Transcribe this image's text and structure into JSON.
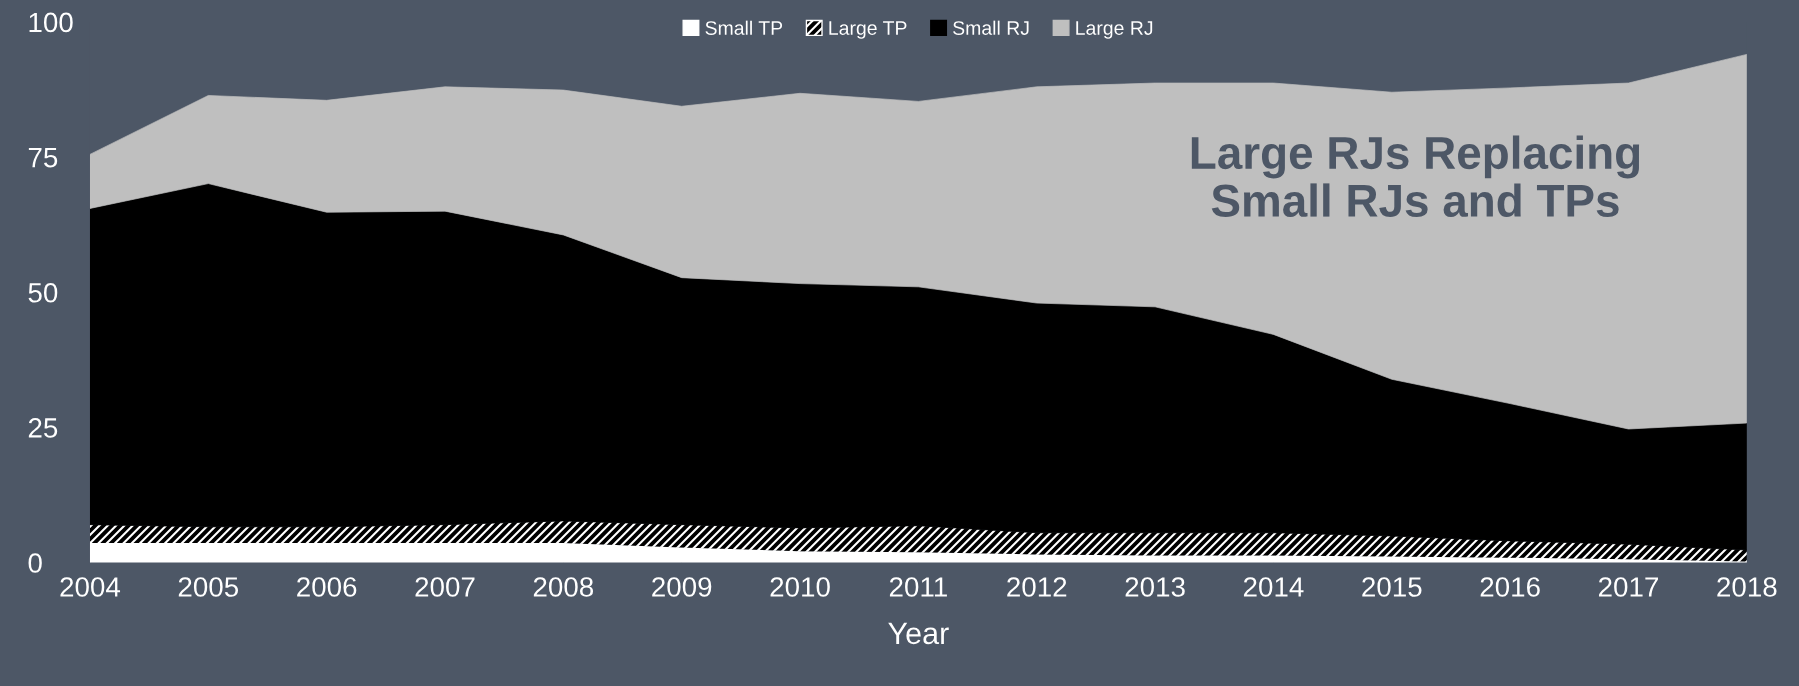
{
  "chart_data": {
    "type": "area",
    "stacked": true,
    "xlabel": "Year",
    "x": [
      2004,
      2005,
      2006,
      2007,
      2008,
      2009,
      2010,
      2011,
      2012,
      2013,
      2014,
      2015,
      2016,
      2017,
      2018
    ],
    "series": [
      {
        "name": "Small TP",
        "color": "#ffffff",
        "values": [
          3.6,
          3.6,
          3.6,
          3.6,
          3.6,
          2.8,
          2.1,
          1.9,
          1.5,
          1.3,
          1.3,
          1.1,
          0.9,
          0.6,
          0.2
        ]
      },
      {
        "name": "Large TP",
        "color": "#000000",
        "values": [
          3.4,
          3.0,
          3.0,
          3.4,
          4.1,
          4.2,
          4.3,
          4.9,
          4.0,
          4.2,
          4.2,
          3.8,
          3.1,
          2.8,
          2.1
        ]
      },
      {
        "name": "Small RJ",
        "color": "#000000",
        "values": [
          58.5,
          63.5,
          58.2,
          58.0,
          52.9,
          45.7,
          45.2,
          44.2,
          42.5,
          41.8,
          36.7,
          29.0,
          25.4,
          21.3,
          23.5
        ]
      },
      {
        "name": "Large RJ",
        "color": "#bfbfbf",
        "values": [
          10.0,
          16.3,
          20.7,
          23.0,
          26.8,
          31.7,
          35.2,
          34.3,
          40.0,
          41.4,
          46.5,
          53.1,
          58.4,
          64.0,
          68.2
        ]
      }
    ],
    "xlim": [
      2004,
      2018
    ],
    "xticks": [
      2004,
      2005,
      2006,
      2007,
      2008,
      2009,
      2010,
      2011,
      2012,
      2013,
      2014,
      2015,
      2016,
      2017,
      2018
    ],
    "ylim": [
      0,
      100
    ],
    "yticks": [
      0,
      25,
      50,
      75,
      100
    ],
    "grid": false,
    "legend": "top",
    "annotations": [
      "Large RJs Replacing\nSmall RJs and TPs"
    ]
  }
}
